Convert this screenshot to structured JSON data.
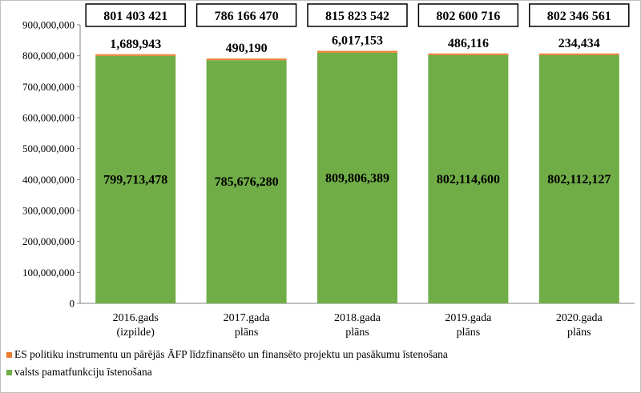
{
  "chart_data": {
    "type": "bar",
    "stacked": true,
    "categories": [
      [
        "2016.gads",
        "(izpilde)"
      ],
      [
        "2017.gada",
        "plāns"
      ],
      [
        "2018.gada",
        "plāns"
      ],
      [
        "2019.gada",
        "plāns"
      ],
      [
        "2020.gada",
        "plāns"
      ]
    ],
    "series": [
      {
        "name": "valsts pamatfunkciju īstenošana",
        "color": "#70ad47",
        "values": [
          799713478,
          785676280,
          809806389,
          802114600,
          802112127
        ],
        "labels": [
          "799,713,478",
          "785,676,280",
          "809,806,389",
          "802,114,600",
          "802,112,127"
        ]
      },
      {
        "name": "ES politiku instrumentu un pārējās ĀFP līdzfinansēto un finansēto projektu un pasākumu īstenošana",
        "color": "#ed7d31",
        "values": [
          1689943,
          490190,
          6017153,
          486116,
          234434
        ],
        "labels": [
          "1,689,943",
          "490,190",
          "6,017,153",
          "486,116",
          "234,434"
        ]
      }
    ],
    "totals": [
      "801 403 421",
      "786 166 470",
      "815 823 542",
      "802 600 716",
      "802 346 561"
    ],
    "ylim": [
      0,
      900000000
    ],
    "yticks": [
      "0",
      "100,000,000",
      "200,000,000",
      "300,000,000",
      "400,000,000",
      "500,000,000",
      "600,000,000",
      "700,000,000",
      "800,000,000",
      "900,000,000"
    ],
    "grid": false,
    "legend_position": "bottom-left",
    "title": "",
    "xlabel": "",
    "ylabel": ""
  }
}
